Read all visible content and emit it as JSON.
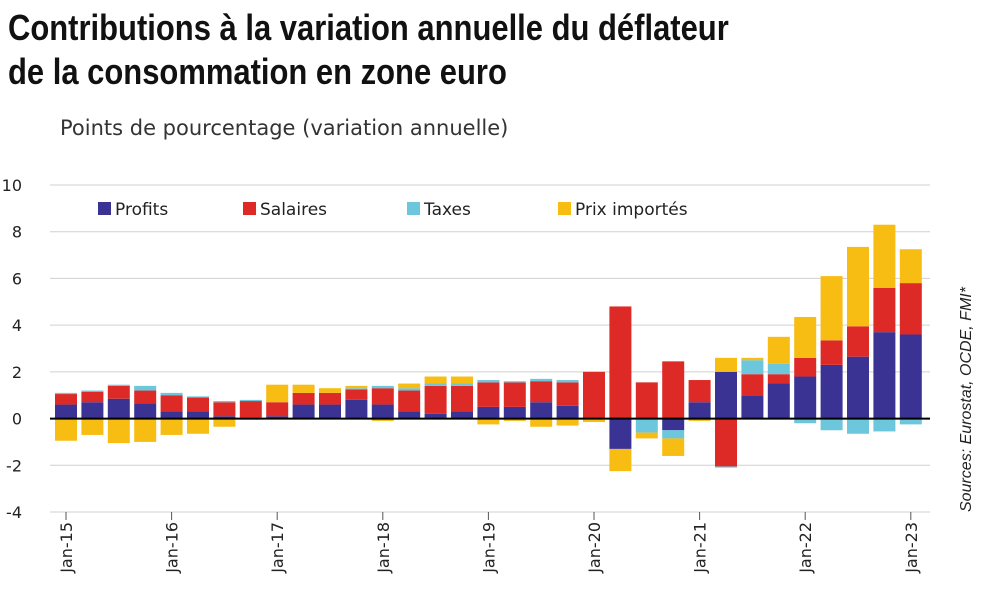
{
  "title_line1": "Contributions à la variation annuelle du déflateur",
  "title_line2": "de la consommation en zone euro",
  "subtitle": "Points de pourcentage (variation annuelle)",
  "source": "Sources: Eurostat, OCDE, FMI*",
  "colors": {
    "profits": "#3b3393",
    "salaires": "#dd2a27",
    "taxes": "#6cc6dc",
    "prix": "#f7bd12",
    "grid": "#d0d0d0",
    "zero": "#000000"
  },
  "chart_data": {
    "type": "bar",
    "stacked": true,
    "diverging": true,
    "ylim": [
      -4,
      10
    ],
    "yticks": [
      -4,
      -2,
      0,
      2,
      4,
      6,
      8,
      10
    ],
    "grid": true,
    "legend_position": "top-left",
    "xtick_labels": [
      "Jan-15",
      "Jan-16",
      "Jan-17",
      "Jan-18",
      "Jan-19",
      "Jan-20",
      "Jan-21",
      "Jan-22",
      "Jan-23"
    ],
    "categories": [
      "2015-Q1",
      "2015-Q2",
      "2015-Q3",
      "2015-Q4",
      "2016-Q1",
      "2016-Q2",
      "2016-Q3",
      "2016-Q4",
      "2017-Q1",
      "2017-Q2",
      "2017-Q3",
      "2017-Q4",
      "2018-Q1",
      "2018-Q2",
      "2018-Q3",
      "2018-Q4",
      "2019-Q1",
      "2019-Q2",
      "2019-Q3",
      "2019-Q4",
      "2020-Q1",
      "2020-Q2",
      "2020-Q3",
      "2020-Q4",
      "2021-Q1",
      "2021-Q2",
      "2021-Q3",
      "2021-Q4",
      "2022-Q1",
      "2022-Q2",
      "2022-Q3",
      "2022-Q4",
      "2023-Q1"
    ],
    "series": [
      {
        "name": "Profits",
        "values": [
          0.6,
          0.7,
          0.85,
          0.65,
          0.3,
          0.3,
          0.1,
          0.05,
          0.1,
          0.6,
          0.6,
          0.8,
          0.6,
          0.3,
          0.2,
          0.3,
          0.5,
          0.5,
          0.7,
          0.55,
          0.0,
          -1.3,
          0.0,
          -0.5,
          0.7,
          2.0,
          1.0,
          1.5,
          1.8,
          2.3,
          2.65,
          3.7,
          3.6
        ]
      },
      {
        "name": "Salaires",
        "values": [
          0.45,
          0.45,
          0.55,
          0.55,
          0.7,
          0.6,
          0.6,
          0.7,
          0.6,
          0.5,
          0.5,
          0.45,
          0.7,
          0.9,
          1.2,
          1.1,
          1.05,
          1.05,
          0.9,
          1.0,
          2.0,
          4.8,
          1.55,
          2.45,
          0.95,
          -2.05,
          0.9,
          0.4,
          0.8,
          1.05,
          1.3,
          1.9,
          2.2
        ]
      },
      {
        "name": "Taxes",
        "values": [
          0.05,
          0.05,
          0.05,
          0.2,
          0.1,
          0.05,
          0.05,
          0.05,
          0.0,
          0.0,
          0.0,
          0.05,
          0.1,
          0.1,
          0.1,
          0.1,
          0.1,
          0.05,
          0.1,
          0.1,
          0.0,
          0.0,
          -0.6,
          -0.35,
          0.0,
          -0.05,
          0.6,
          0.45,
          -0.2,
          -0.5,
          -0.65,
          -0.55,
          -0.25
        ]
      },
      {
        "name": "Prix importés",
        "values": [
          -0.95,
          -0.7,
          -1.05,
          -1.0,
          -0.7,
          -0.65,
          -0.35,
          -0.05,
          0.75,
          0.35,
          0.2,
          0.1,
          -0.1,
          0.2,
          0.3,
          0.3,
          -0.25,
          -0.1,
          -0.35,
          -0.3,
          -0.15,
          -0.95,
          -0.25,
          -0.75,
          -0.1,
          0.6,
          0.1,
          1.15,
          1.75,
          2.75,
          3.4,
          2.7,
          1.45
        ]
      }
    ]
  }
}
